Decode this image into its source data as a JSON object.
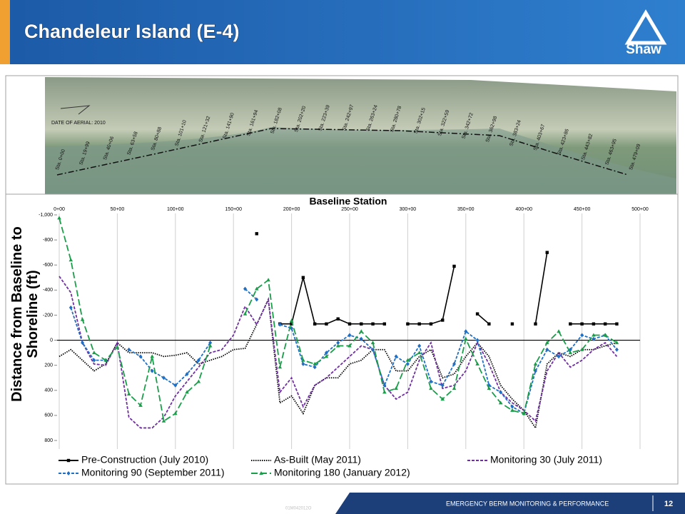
{
  "header": {
    "title": "Chandeleur Island (E-4)",
    "logo": "Shaw"
  },
  "aerial": {
    "date": "DATE OF AERIAL: 2010",
    "stations": [
      "Sta. 0+00",
      "Sta. 19+99",
      "Sta. 40+06",
      "Sta. 63+58",
      "Sta. 80+88",
      "Sta. 101+10",
      "Sta. 121+32",
      "Sta. 141+90",
      "Sta. 161+94",
      "Sta. 182+08",
      "Sta. 202+20",
      "Sta. 223+39",
      "Sta. 242+97",
      "Sta. 263+24",
      "Sta. 280+78",
      "Sta. 302+15",
      "Sta. 322+59",
      "Sta. 342+72",
      "Sta. 362+98",
      "Sta. 383+24",
      "Sta. 403+67",
      "Sta. 423+86",
      "Sta. 443+82",
      "Sta. 463+95",
      "Sta. 479+09"
    ]
  },
  "chart_data": {
    "type": "line",
    "x_label": "Baseline Station",
    "y_label": "Distance from Baseline to Shoreline (ft)",
    "x": [
      0,
      10,
      20,
      30,
      40,
      50,
      60,
      70,
      80,
      90,
      100,
      110,
      120,
      130,
      140,
      150,
      160,
      170,
      180,
      190,
      200,
      210,
      220,
      230,
      240,
      250,
      260,
      270,
      280,
      290,
      300,
      310,
      320,
      330,
      340,
      350,
      360,
      370,
      380,
      390,
      400,
      410,
      420,
      430,
      440,
      450,
      460,
      470,
      480,
      490
    ],
    "xlim": [
      0,
      500
    ],
    "xticks": [
      {
        "value": 0,
        "label": "0+00"
      },
      {
        "value": 50,
        "label": "50+00"
      },
      {
        "value": 100,
        "label": "100+00"
      },
      {
        "value": 150,
        "label": "150+00"
      },
      {
        "value": 200,
        "label": "200+00"
      },
      {
        "value": 250,
        "label": "250+00"
      },
      {
        "value": 300,
        "label": "300+00"
      },
      {
        "value": 350,
        "label": "350+00"
      },
      {
        "value": 400,
        "label": "400+00"
      },
      {
        "value": 450,
        "label": "450+00"
      },
      {
        "value": 500,
        "label": "500+00"
      }
    ],
    "ylim": [
      -1000,
      800
    ],
    "y_reversed": true,
    "yticks": [
      {
        "value": -1000,
        "label": "-1,000"
      },
      -800,
      -600,
      -400,
      -200,
      0,
      200,
      400,
      600,
      800
    ],
    "grid": "x",
    "series": [
      {
        "name": "Pre-Construction (July 2010)",
        "color": "#000000",
        "dash": "solid",
        "marker": "square",
        "values": [
          null,
          null,
          null,
          null,
          null,
          null,
          null,
          null,
          null,
          null,
          null,
          null,
          null,
          null,
          null,
          null,
          null,
          -850,
          null,
          -130,
          -130,
          -500,
          -130,
          -130,
          -170,
          -130,
          -130,
          -130,
          -130,
          null,
          -130,
          -130,
          -130,
          -160,
          -590,
          null,
          -210,
          -130,
          null,
          -130,
          null,
          -130,
          -700,
          null,
          -130,
          -130,
          -130,
          -130,
          -130,
          null
        ]
      },
      {
        "name": "As-Built (May 2011)",
        "color": "#000000",
        "dash": "dotted",
        "marker": "none",
        "values": [
          130,
          75,
          160,
          245,
          190,
          20,
          100,
          100,
          100,
          130,
          120,
          100,
          190,
          160,
          130,
          75,
          65,
          -125,
          -325,
          500,
          445,
          585,
          360,
          300,
          300,
          190,
          160,
          75,
          75,
          245,
          245,
          130,
          75,
          300,
          270,
          130,
          20,
          130,
          360,
          470,
          560,
          700,
          190,
          100,
          130,
          75,
          75,
          45,
          20,
          null
        ]
      },
      {
        "name": "Monitoring 30 (July 2011)",
        "color": "#7030a0",
        "dash": "dashed",
        "marker": "none",
        "values": [
          -510,
          -380,
          20,
          190,
          200,
          20,
          615,
          700,
          700,
          615,
          445,
          330,
          215,
          100,
          75,
          -40,
          -270,
          -125,
          -325,
          415,
          300,
          530,
          360,
          300,
          215,
          130,
          45,
          75,
          360,
          470,
          415,
          160,
          20,
          385,
          360,
          245,
          20,
          190,
          415,
          500,
          560,
          645,
          245,
          100,
          215,
          160,
          75,
          20,
          130,
          null
        ]
      },
      {
        "name": "Monitoring 90 (September 2011)",
        "color": "#1f6fc4",
        "dash": "dashed",
        "marker": "diamond",
        "values": [
          null,
          -260,
          20,
          160,
          160,
          null,
          75,
          130,
          245,
          300,
          360,
          270,
          160,
          20,
          null,
          null,
          -410,
          -325,
          null,
          -125,
          -95,
          190,
          215,
          100,
          20,
          -40,
          -10,
          75,
          360,
          130,
          190,
          45,
          330,
          360,
          190,
          -70,
          0,
          360,
          415,
          530,
          585,
          245,
          75,
          130,
          75,
          -40,
          -10,
          -40,
          75,
          null
        ]
      },
      {
        "name": "Monitoring 180 (January 2012)",
        "color": "#1a9e4a",
        "dash": "longdash",
        "marker": "triangle",
        "values": [
          -975,
          -640,
          -165,
          100,
          160,
          55,
          430,
          520,
          130,
          645,
          585,
          415,
          330,
          45,
          null,
          null,
          -210,
          -410,
          -480,
          215,
          -155,
          160,
          190,
          130,
          45,
          45,
          -70,
          20,
          415,
          385,
          160,
          100,
          385,
          470,
          385,
          -10,
          190,
          385,
          500,
          560,
          585,
          190,
          20,
          -70,
          100,
          75,
          -40,
          -40,
          20,
          null
        ]
      }
    ]
  },
  "footer": {
    "code": "01M042012O",
    "text": "EMERGENCY BERM MONITORING & PERFORMANCE",
    "page": "12"
  }
}
